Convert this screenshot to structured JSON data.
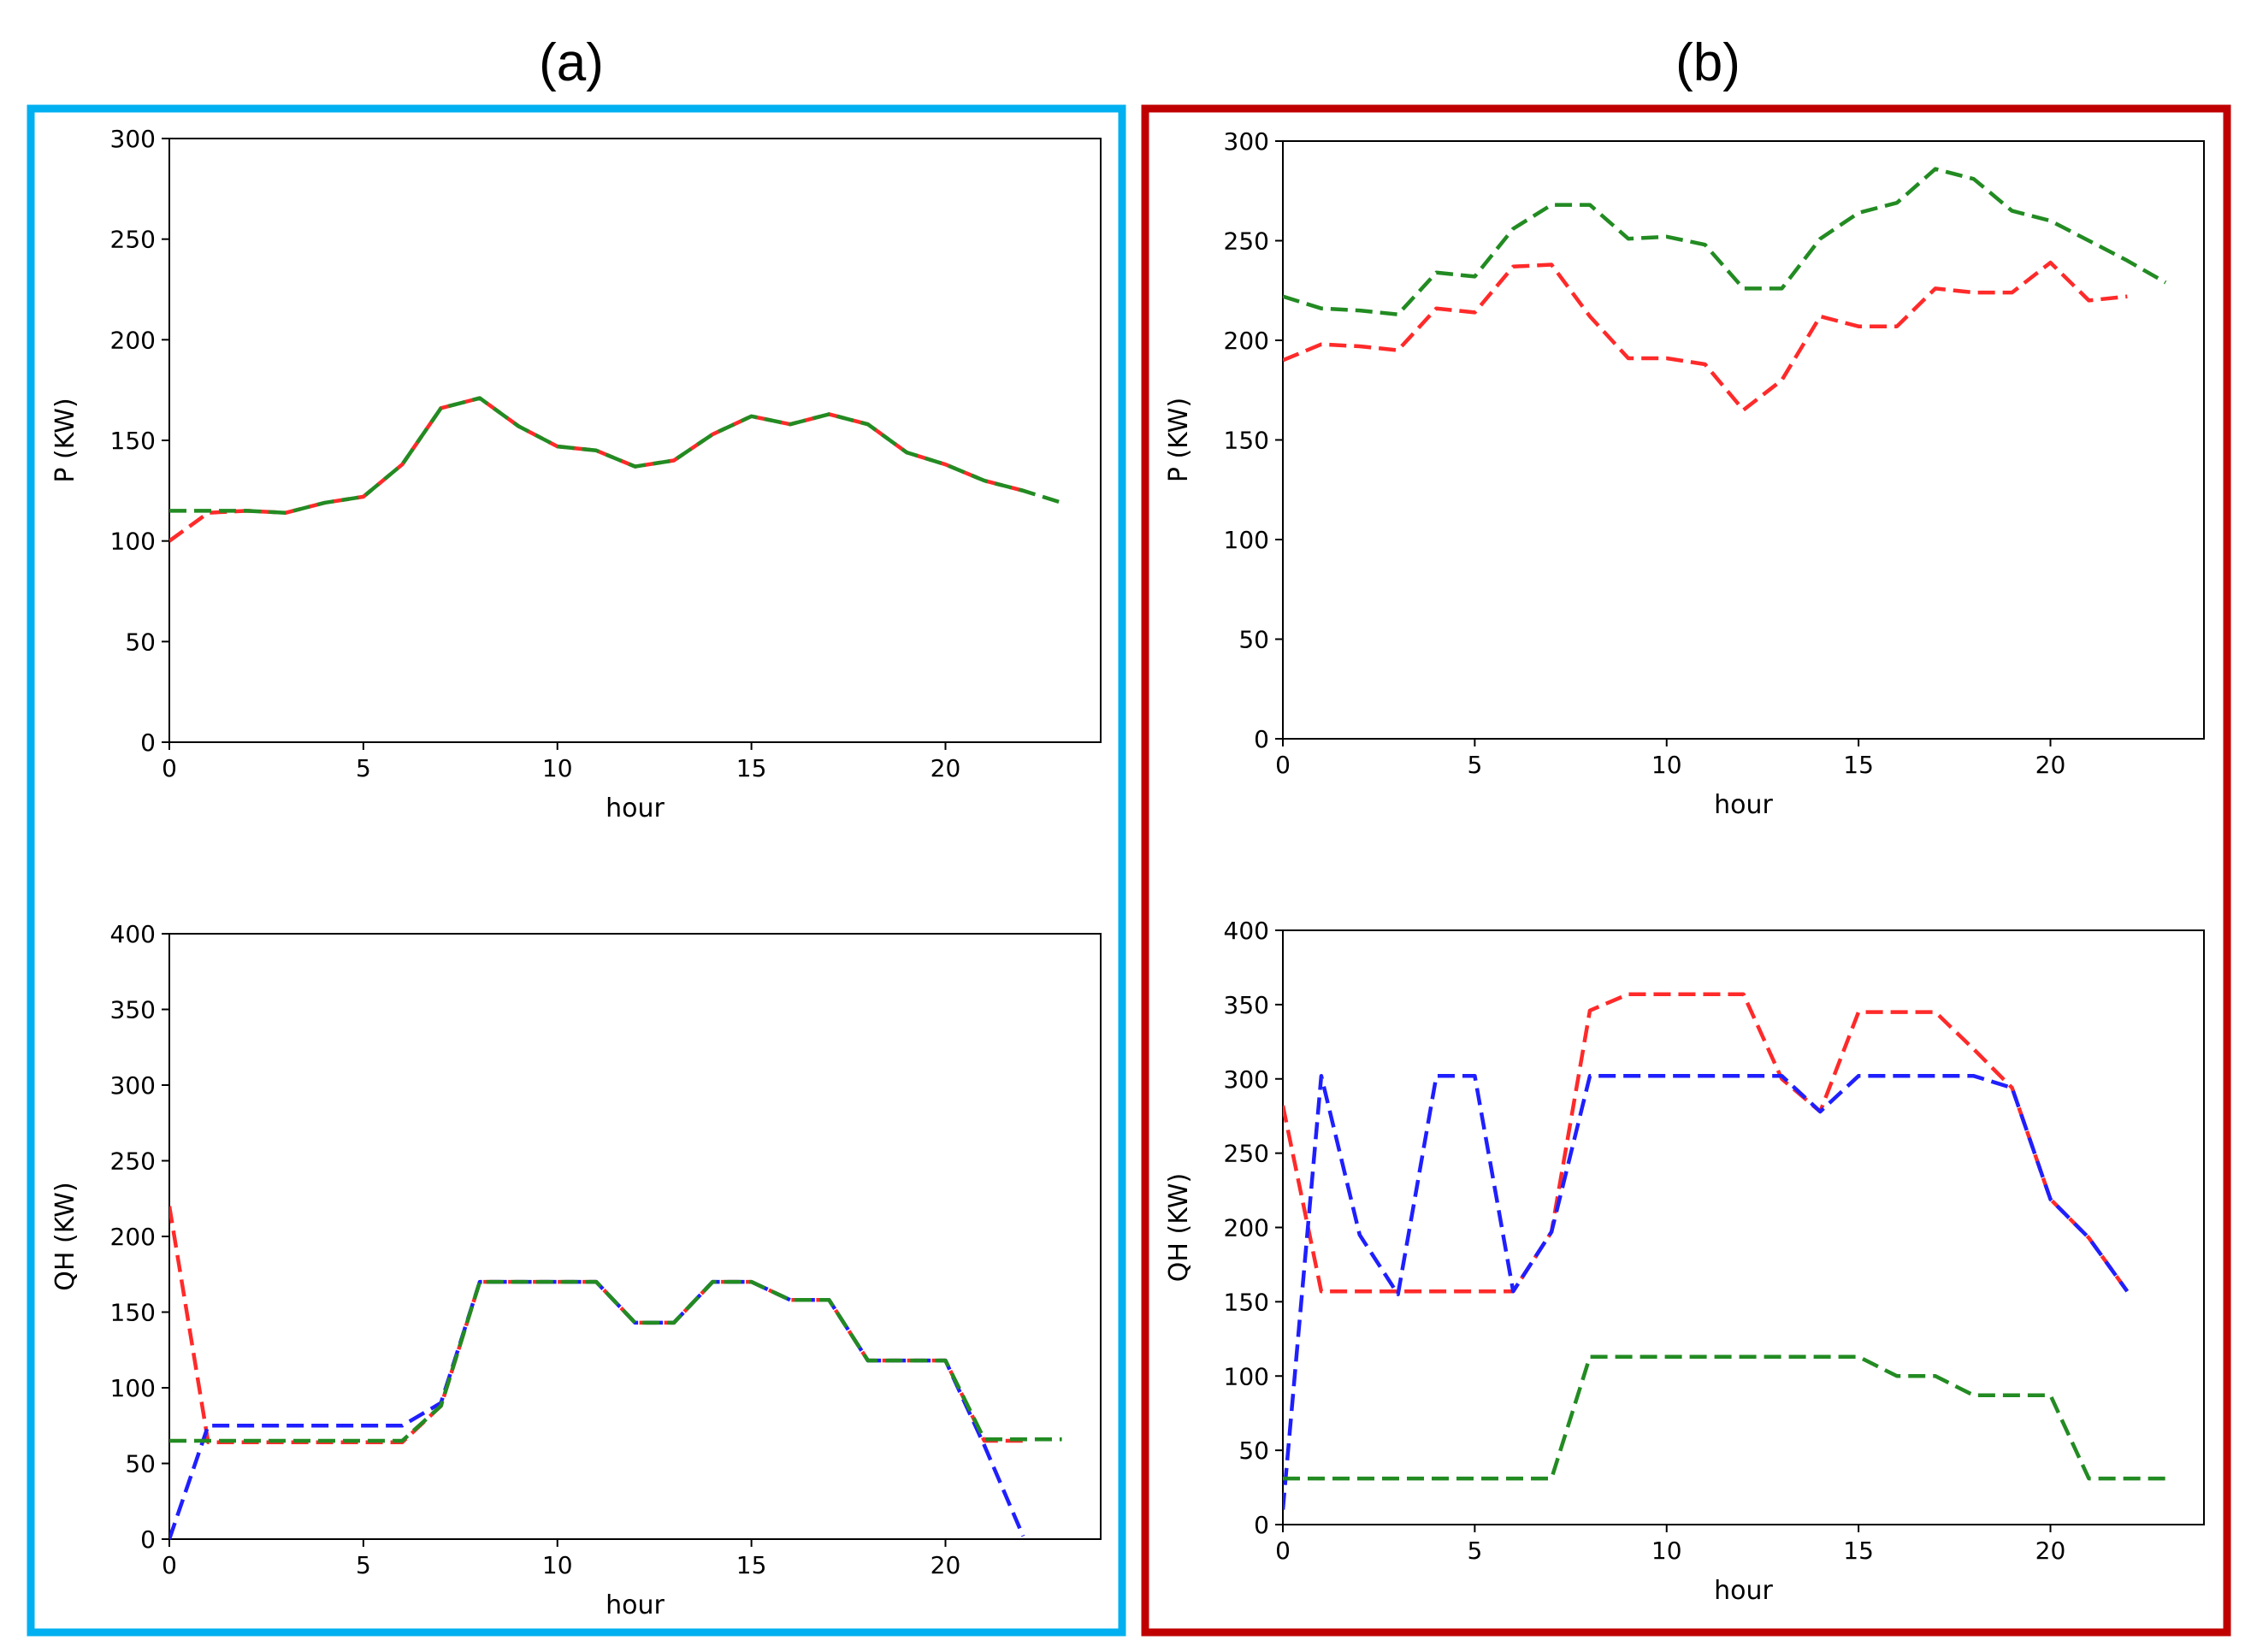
{
  "panels": [
    {
      "label": "(a)",
      "border_color": "#00B0F0"
    },
    {
      "label": "(b)",
      "border_color": "#C00000"
    }
  ],
  "series_colors": {
    "red": "#ff2a2a",
    "green": "#228b22",
    "blue": "#1f1fff"
  },
  "chart_data": [
    {
      "panel": "(a)",
      "type": "line",
      "title": "",
      "xlabel": "hour",
      "ylabel": "P (KW)",
      "xlim": [
        0,
        24
      ],
      "ylim": [
        0,
        300
      ],
      "xticks": [
        0,
        5,
        10,
        15,
        20
      ],
      "yticks": [
        0,
        50,
        100,
        150,
        200,
        250,
        300
      ],
      "grid": false,
      "series": [
        {
          "name": "red",
          "color": "red",
          "x": [
            0,
            1,
            2,
            3,
            4,
            5,
            6,
            7,
            8,
            9,
            10,
            11,
            12,
            13,
            14,
            15,
            16,
            17,
            18,
            19,
            20,
            21,
            22
          ],
          "values": [
            100,
            114,
            115,
            114,
            119,
            122,
            138,
            166,
            171,
            157,
            147,
            145,
            137,
            140,
            153,
            162,
            158,
            163,
            158,
            144,
            138,
            130,
            125
          ]
        },
        {
          "name": "green",
          "color": "green",
          "x": [
            0,
            1,
            2,
            3,
            4,
            5,
            6,
            7,
            8,
            9,
            10,
            11,
            12,
            13,
            14,
            15,
            16,
            17,
            18,
            19,
            20,
            21,
            22,
            23
          ],
          "values": [
            115,
            115,
            115,
            114,
            119,
            122,
            138,
            166,
            171,
            157,
            147,
            145,
            137,
            140,
            153,
            162,
            158,
            163,
            158,
            144,
            138,
            130,
            125,
            119
          ]
        }
      ]
    },
    {
      "panel": "(a)",
      "type": "line",
      "title": "",
      "xlabel": "hour",
      "ylabel": "QH (KW)",
      "xlim": [
        0,
        24
      ],
      "ylim": [
        0,
        400
      ],
      "xticks": [
        0,
        5,
        10,
        15,
        20
      ],
      "yticks": [
        0,
        50,
        100,
        150,
        200,
        250,
        300,
        350,
        400
      ],
      "grid": false,
      "series": [
        {
          "name": "red",
          "color": "red",
          "x": [
            0,
            1,
            2,
            3,
            4,
            5,
            6,
            7,
            8,
            9,
            10,
            11,
            12,
            13,
            14,
            15,
            16,
            17,
            18,
            19,
            20,
            21,
            22
          ],
          "values": [
            220,
            64,
            64,
            64,
            64,
            64,
            64,
            88,
            170,
            170,
            170,
            170,
            143,
            143,
            170,
            170,
            158,
            158,
            118,
            118,
            118,
            65,
            65
          ]
        },
        {
          "name": "blue",
          "color": "blue",
          "x": [
            0,
            1,
            2,
            3,
            4,
            5,
            6,
            7,
            8,
            9,
            10,
            11,
            12,
            13,
            14,
            15,
            16,
            17,
            18,
            19,
            20,
            21,
            22
          ],
          "values": [
            0,
            75,
            75,
            75,
            75,
            75,
            75,
            90,
            170,
            170,
            170,
            170,
            143,
            143,
            170,
            170,
            158,
            158,
            118,
            118,
            118,
            62,
            2
          ]
        },
        {
          "name": "green",
          "color": "green",
          "x": [
            0,
            1,
            2,
            3,
            4,
            5,
            6,
            7,
            8,
            9,
            10,
            11,
            12,
            13,
            14,
            15,
            16,
            17,
            18,
            19,
            20,
            21,
            22,
            23
          ],
          "values": [
            65,
            65,
            65,
            65,
            65,
            65,
            65,
            88,
            170,
            170,
            170,
            170,
            143,
            143,
            170,
            170,
            158,
            158,
            118,
            118,
            118,
            66,
            66,
            66
          ]
        }
      ]
    },
    {
      "panel": "(b)",
      "type": "line",
      "title": "",
      "xlabel": "hour",
      "ylabel": "P (KW)",
      "xlim": [
        0,
        24
      ],
      "ylim": [
        0,
        300
      ],
      "xticks": [
        0,
        5,
        10,
        15,
        20
      ],
      "yticks": [
        0,
        50,
        100,
        150,
        200,
        250,
        300
      ],
      "grid": false,
      "series": [
        {
          "name": "red",
          "color": "red",
          "x": [
            0,
            1,
            2,
            3,
            4,
            5,
            6,
            7,
            8,
            9,
            10,
            11,
            12,
            13,
            14,
            15,
            16,
            17,
            18,
            19,
            20,
            21,
            22
          ],
          "values": [
            190,
            198,
            197,
            195,
            216,
            214,
            237,
            238,
            212,
            191,
            191,
            188,
            165,
            180,
            212,
            207,
            207,
            226,
            224,
            224,
            239,
            220,
            222
          ]
        },
        {
          "name": "green",
          "color": "green",
          "x": [
            0,
            1,
            2,
            3,
            4,
            5,
            6,
            7,
            8,
            9,
            10,
            11,
            12,
            13,
            14,
            15,
            16,
            17,
            18,
            19,
            20,
            21,
            22,
            23
          ],
          "values": [
            222,
            216,
            215,
            213,
            234,
            232,
            256,
            268,
            268,
            251,
            252,
            248,
            226,
            226,
            251,
            264,
            269,
            286,
            281,
            265,
            260,
            250,
            240,
            229
          ]
        }
      ]
    },
    {
      "panel": "(b)",
      "type": "line",
      "title": "",
      "xlabel": "hour",
      "ylabel": "QH (KW)",
      "xlim": [
        0,
        24
      ],
      "ylim": [
        0,
        400
      ],
      "xticks": [
        0,
        5,
        10,
        15,
        20
      ],
      "yticks": [
        0,
        50,
        100,
        150,
        200,
        250,
        300,
        350,
        400
      ],
      "grid": false,
      "series": [
        {
          "name": "red",
          "color": "red",
          "x": [
            0,
            1,
            2,
            3,
            4,
            5,
            6,
            7,
            8,
            9,
            10,
            11,
            12,
            13,
            14,
            15,
            16,
            17,
            18,
            19,
            20,
            21,
            22
          ],
          "values": [
            282,
            157,
            157,
            157,
            157,
            157,
            157,
            197,
            346,
            357,
            357,
            357,
            357,
            300,
            278,
            345,
            345,
            345,
            320,
            294,
            219,
            193,
            157
          ]
        },
        {
          "name": "blue",
          "color": "blue",
          "x": [
            0,
            1,
            2,
            3,
            4,
            5,
            6,
            7,
            8,
            9,
            10,
            11,
            12,
            13,
            14,
            15,
            16,
            17,
            18,
            19,
            20,
            21,
            22
          ],
          "values": [
            10,
            302,
            195,
            155,
            302,
            302,
            157,
            197,
            302,
            302,
            302,
            302,
            302,
            302,
            278,
            302,
            302,
            302,
            302,
            294,
            219,
            193,
            157
          ]
        },
        {
          "name": "green",
          "color": "green",
          "x": [
            0,
            1,
            2,
            3,
            4,
            5,
            6,
            7,
            8,
            9,
            10,
            11,
            12,
            13,
            14,
            15,
            16,
            17,
            18,
            19,
            20,
            21,
            22,
            23
          ],
          "values": [
            31,
            31,
            31,
            31,
            31,
            31,
            31,
            31,
            113,
            113,
            113,
            113,
            113,
            113,
            113,
            113,
            100,
            100,
            87,
            87,
            87,
            31,
            31,
            31
          ]
        }
      ]
    }
  ]
}
